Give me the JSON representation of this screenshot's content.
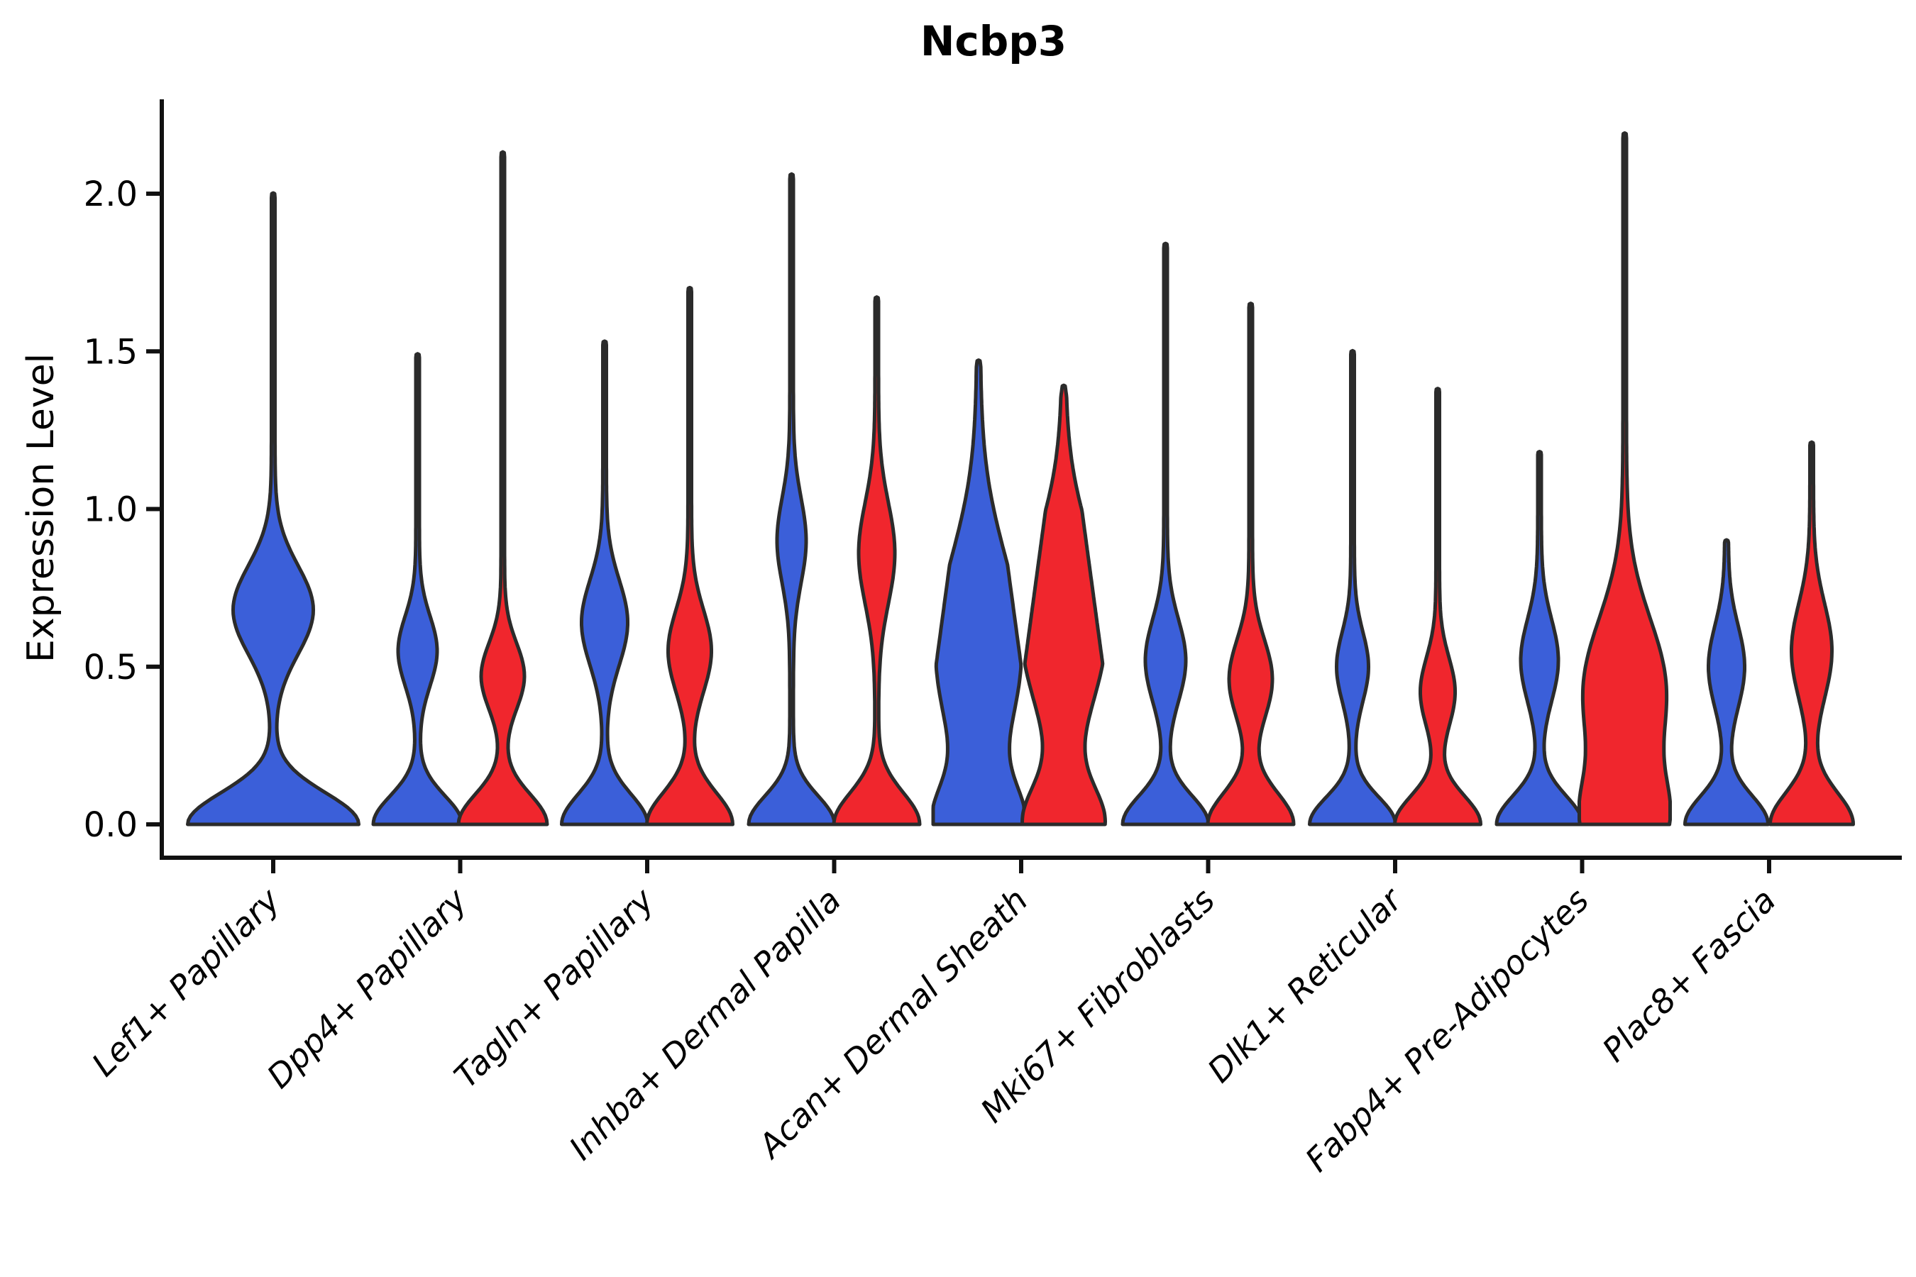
{
  "title": "Ncbp3",
  "chart_data": {
    "type": "violin",
    "title": "Ncbp3",
    "xlabel": "",
    "ylabel": "Expression Level",
    "ylim": [
      0,
      2.3
    ],
    "yticks": [
      0.0,
      0.5,
      1.0,
      1.5,
      2.0
    ],
    "grid": false,
    "legend": "none",
    "outline_color": "#2b2b2b",
    "background_color": "#ffffff",
    "categories": [
      "Lef1+ Papillary",
      "Dpp4+ Papillary",
      "Tagln+ Papillary",
      "Inhba+ Dermal Papilla",
      "Acan+ Dermal Sheath",
      "Mki67+ Fibroblasts",
      "Dlk1+ Reticular",
      "Fabp4+ Pre-Adipocytes",
      "Plac8+ Fascia"
    ],
    "series": [
      {
        "name": "blue",
        "color": "#3B5FD9",
        "max_expression": [
          2.0,
          1.49,
          1.53,
          2.06,
          1.47,
          1.84,
          1.5,
          1.18,
          0.9
        ]
      },
      {
        "name": "red",
        "color": "#F0262D",
        "max_expression": [
          null,
          2.13,
          1.7,
          1.67,
          1.39,
          1.65,
          1.38,
          2.19,
          1.21
        ]
      }
    ],
    "violins": [
      {
        "category_index": 0,
        "side": "blue",
        "single": true,
        "max": 2.0,
        "hw": 124,
        "tip": 60,
        "bumps": [
          {
            "a": 118,
            "mu": 0,
            "sigma": 0.1
          },
          {
            "a": 54,
            "mu": 0.68,
            "sigma": 0.14
          }
        ]
      },
      {
        "category_index": 1,
        "side": "blue",
        "max": 1.49,
        "hw": 64,
        "tip": 60,
        "bumps": [
          {
            "a": 60,
            "mu": 0,
            "sigma": 0.09
          },
          {
            "a": 25,
            "mu": 0.55,
            "sigma": 0.11
          }
        ]
      },
      {
        "category_index": 1,
        "side": "red",
        "max": 2.13,
        "hw": 64,
        "tip": 60,
        "bumps": [
          {
            "a": 60,
            "mu": 0,
            "sigma": 0.095
          },
          {
            "a": 28,
            "mu": 0.47,
            "sigma": 0.105
          }
        ]
      },
      {
        "category_index": 2,
        "side": "blue",
        "max": 1.53,
        "hw": 64,
        "tip": 60,
        "bumps": [
          {
            "a": 58,
            "mu": 0,
            "sigma": 0.095
          },
          {
            "a": 30,
            "mu": 0.64,
            "sigma": 0.135
          }
        ]
      },
      {
        "category_index": 2,
        "side": "red",
        "max": 1.7,
        "hw": 64,
        "tip": 60,
        "bumps": [
          {
            "a": 58,
            "mu": 0,
            "sigma": 0.1
          },
          {
            "a": 28,
            "mu": 0.55,
            "sigma": 0.13
          }
        ]
      },
      {
        "category_index": 3,
        "side": "blue",
        "max": 2.06,
        "hw": 64,
        "tip": 60,
        "bumps": [
          {
            "a": 58,
            "mu": 0,
            "sigma": 0.09
          },
          {
            "a": 18,
            "mu": 0.9,
            "sigma": 0.135
          }
        ]
      },
      {
        "category_index": 3,
        "side": "red",
        "max": 1.67,
        "hw": 64,
        "tip": 60,
        "bumps": [
          {
            "a": 58,
            "mu": 0,
            "sigma": 0.1
          },
          {
            "a": 23,
            "mu": 0.86,
            "sigma": 0.16
          }
        ]
      },
      {
        "category_index": 4,
        "side": "blue",
        "max": 1.47,
        "hw": 64,
        "tip": 60,
        "bumps": [
          {
            "a": 52,
            "mu": 0,
            "sigma": 0.12
          },
          {
            "a": 58,
            "mu": 0.55,
            "sigma": 0.3
          }
        ]
      },
      {
        "category_index": 4,
        "side": "red",
        "max": 1.39,
        "hw": 64,
        "tip": 60,
        "bumps": [
          {
            "a": 52,
            "mu": 0,
            "sigma": 0.12
          },
          {
            "a": 58,
            "mu": 0.63,
            "sigma": 0.27
          }
        ]
      },
      {
        "category_index": 5,
        "side": "blue",
        "max": 1.84,
        "hw": 64,
        "tip": 60,
        "bumps": [
          {
            "a": 58,
            "mu": 0,
            "sigma": 0.09
          },
          {
            "a": 26,
            "mu": 0.52,
            "sigma": 0.13
          }
        ]
      },
      {
        "category_index": 5,
        "side": "red",
        "max": 1.65,
        "hw": 64,
        "tip": 60,
        "bumps": [
          {
            "a": 58,
            "mu": 0,
            "sigma": 0.1
          },
          {
            "a": 28,
            "mu": 0.46,
            "sigma": 0.125
          }
        ]
      },
      {
        "category_index": 6,
        "side": "blue",
        "max": 1.5,
        "hw": 64,
        "tip": 60,
        "bumps": [
          {
            "a": 58,
            "mu": 0,
            "sigma": 0.085
          },
          {
            "a": 20,
            "mu": 0.5,
            "sigma": 0.11
          }
        ]
      },
      {
        "category_index": 6,
        "side": "red",
        "max": 1.38,
        "hw": 64,
        "tip": 60,
        "bumps": [
          {
            "a": 58,
            "mu": 0,
            "sigma": 0.09
          },
          {
            "a": 22,
            "mu": 0.42,
            "sigma": 0.11
          }
        ]
      },
      {
        "category_index": 7,
        "side": "blue",
        "max": 1.18,
        "hw": 64,
        "tip": 60,
        "bumps": [
          {
            "a": 58,
            "mu": 0,
            "sigma": 0.09
          },
          {
            "a": 24,
            "mu": 0.52,
            "sigma": 0.13
          }
        ]
      },
      {
        "category_index": 7,
        "side": "red",
        "max": 2.19,
        "hw": 64,
        "tip": 60,
        "bumps": [
          {
            "a": 50,
            "mu": 0,
            "sigma": 0.14
          },
          {
            "a": 56,
            "mu": 0.42,
            "sigma": 0.23
          }
        ]
      },
      {
        "category_index": 8,
        "side": "blue",
        "max": 0.9,
        "hw": 64,
        "tip": 400,
        "bumps": [
          {
            "a": 56,
            "mu": 0,
            "sigma": 0.09
          },
          {
            "a": 23,
            "mu": 0.5,
            "sigma": 0.13
          }
        ]
      },
      {
        "category_index": 8,
        "side": "red",
        "max": 1.21,
        "hw": 64,
        "tip": 60,
        "bumps": [
          {
            "a": 56,
            "mu": 0,
            "sigma": 0.1
          },
          {
            "a": 26,
            "mu": 0.55,
            "sigma": 0.15
          }
        ]
      }
    ]
  }
}
